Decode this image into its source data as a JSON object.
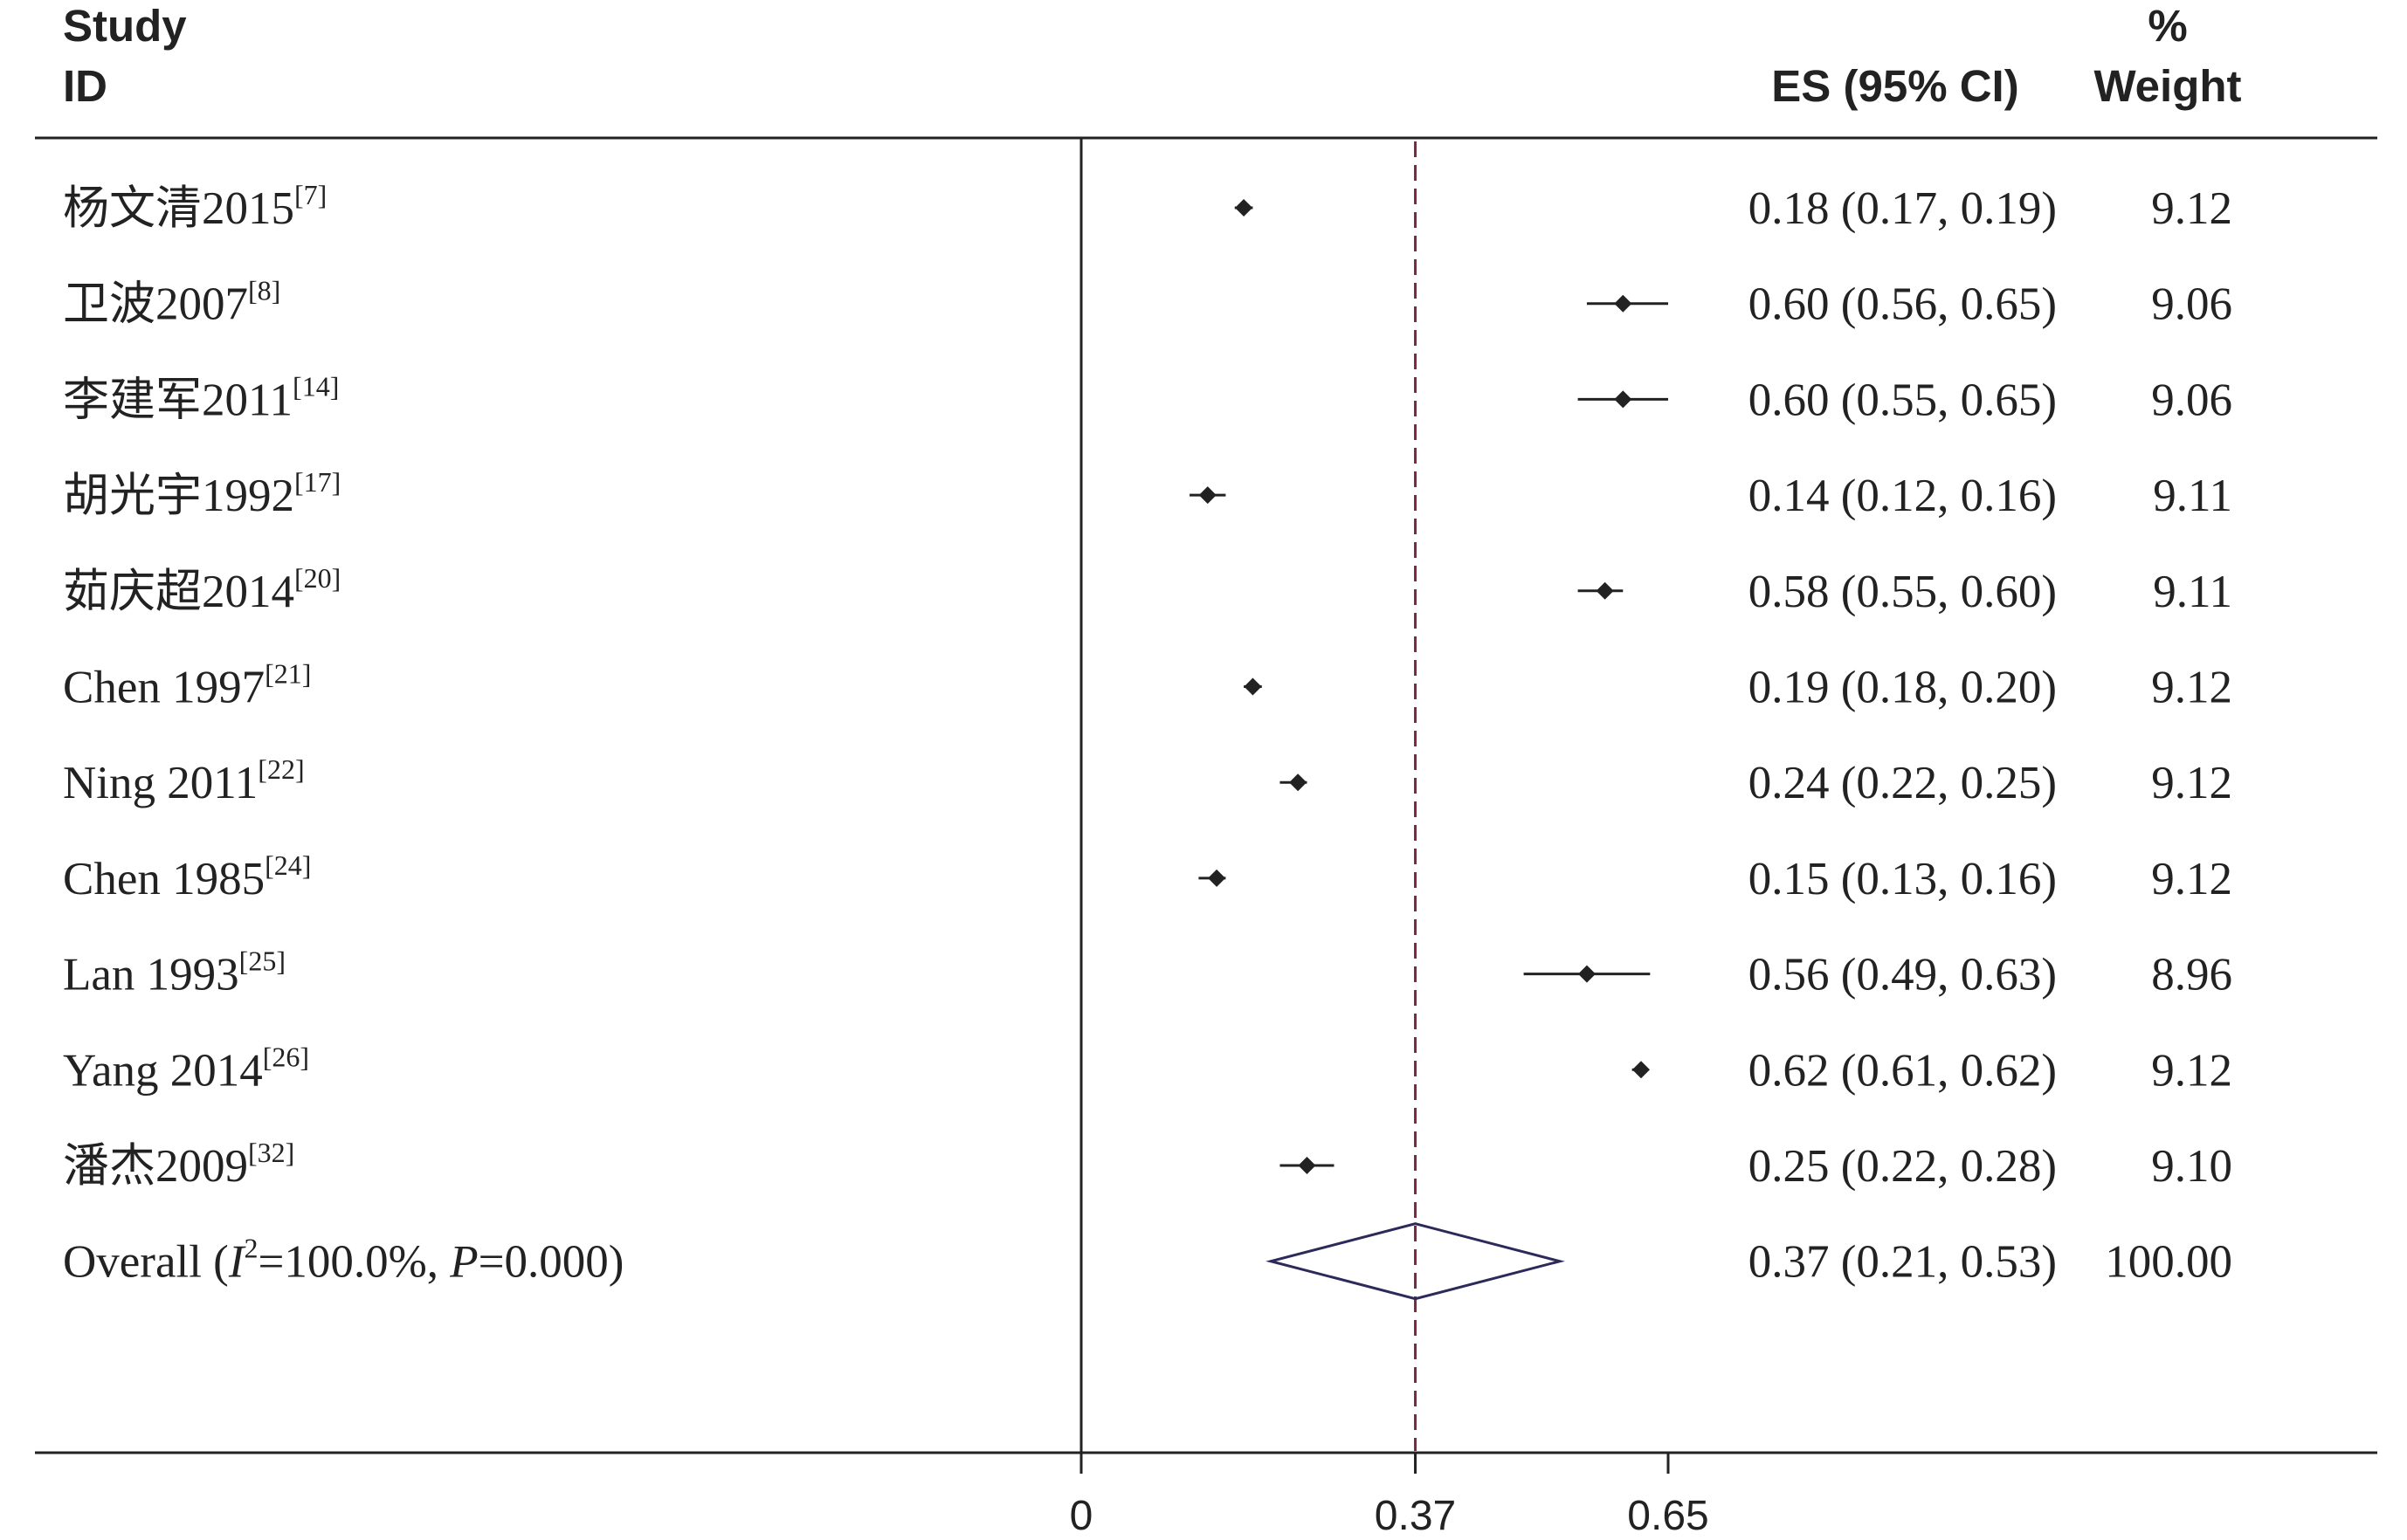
{
  "header": {
    "study_line1": "Study",
    "study_line2": "ID",
    "es_label": "ES (95% CI)",
    "weight_line1": "%",
    "weight_line2": "Weight"
  },
  "chart_data": {
    "type": "forest",
    "x_ticks": [
      "0",
      "0.37",
      "0.65"
    ],
    "xlim": [
      0,
      0.65
    ],
    "reference_line": 0.37,
    "studies": [
      {
        "name": "杨文清2015",
        "ref": "[7]",
        "es": 0.18,
        "lo": 0.17,
        "hi": 0.19,
        "es_text": "0.18 (0.17, 0.19)",
        "weight": "9.12"
      },
      {
        "name": "卫波2007",
        "ref": "[8]",
        "es": 0.6,
        "lo": 0.56,
        "hi": 0.65,
        "es_text": "0.60 (0.56, 0.65)",
        "weight": "9.06"
      },
      {
        "name": "李建军2011",
        "ref": "[14]",
        "es": 0.6,
        "lo": 0.55,
        "hi": 0.65,
        "es_text": "0.60 (0.55, 0.65)",
        "weight": "9.06"
      },
      {
        "name": "胡光宇1992",
        "ref": "[17]",
        "es": 0.14,
        "lo": 0.12,
        "hi": 0.16,
        "es_text": "0.14 (0.12, 0.16)",
        "weight": "9.11"
      },
      {
        "name": "茹庆超2014",
        "ref": "[20]",
        "es": 0.58,
        "lo": 0.55,
        "hi": 0.6,
        "es_text": "0.58 (0.55, 0.60)",
        "weight": "9.11"
      },
      {
        "name": "Chen 1997",
        "ref": "[21]",
        "es": 0.19,
        "lo": 0.18,
        "hi": 0.2,
        "es_text": "0.19 (0.18, 0.20)",
        "weight": "9.12"
      },
      {
        "name": "Ning 2011",
        "ref": "[22]",
        "es": 0.24,
        "lo": 0.22,
        "hi": 0.25,
        "es_text": "0.24 (0.22, 0.25)",
        "weight": "9.12"
      },
      {
        "name": "Chen 1985",
        "ref": "[24]",
        "es": 0.15,
        "lo": 0.13,
        "hi": 0.16,
        "es_text": "0.15 (0.13, 0.16)",
        "weight": "9.12"
      },
      {
        "name": "Lan 1993",
        "ref": "[25]",
        "es": 0.56,
        "lo": 0.49,
        "hi": 0.63,
        "es_text": "0.56 (0.49, 0.63)",
        "weight": "8.96"
      },
      {
        "name": "Yang 2014",
        "ref": "[26]",
        "es": 0.62,
        "lo": 0.61,
        "hi": 0.62,
        "es_text": "0.62 (0.61, 0.62)",
        "weight": "9.12"
      },
      {
        "name": "潘杰2009",
        "ref": "[32]",
        "es": 0.25,
        "lo": 0.22,
        "hi": 0.28,
        "es_text": "0.25 (0.22, 0.28)",
        "weight": "9.10"
      }
    ],
    "overall": {
      "label_prefix": "Overall  (",
      "i2_symbol": "I",
      "i2_sup": "2",
      "i2_value": "=100.0%, ",
      "p_symbol": "P",
      "p_value": "=0.000)",
      "es": 0.37,
      "lo": 0.21,
      "hi": 0.53,
      "es_text": "0.37 (0.21, 0.53)",
      "weight": "100.00"
    },
    "colors": {
      "marker": "#222222",
      "reference_line": "#7a2a45",
      "diamond": "#2b2a5a",
      "axis": "#222222"
    }
  }
}
